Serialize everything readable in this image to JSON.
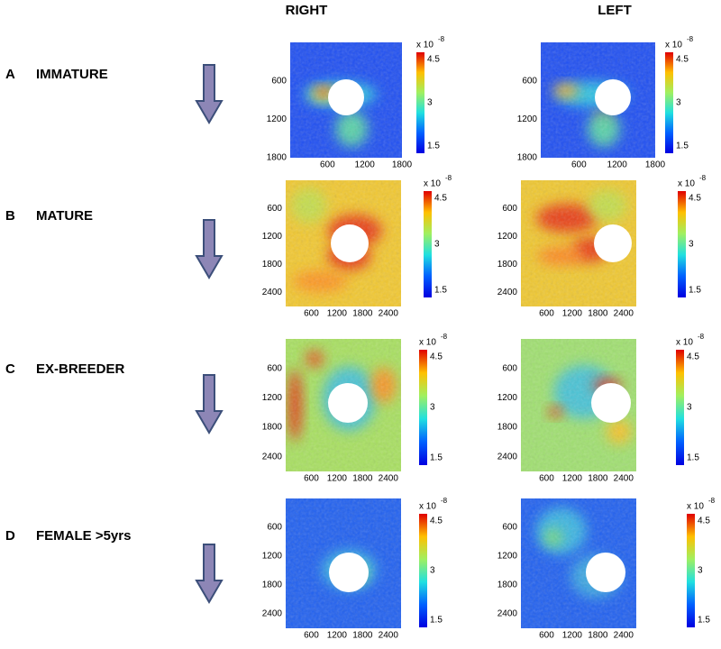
{
  "headers": [
    "RIGHT",
    "LEFT"
  ],
  "rows": [
    {
      "letter": "A",
      "label": "IMMATURE",
      "panels": [
        {
          "xticks": [
            600,
            1200,
            1800
          ],
          "yticks": [
            600,
            1200,
            1800
          ]
        },
        {
          "xticks": [
            600,
            1200,
            1800
          ],
          "yticks": [
            600,
            1200,
            1800
          ]
        }
      ]
    },
    {
      "letter": "B",
      "label": "MATURE",
      "panels": [
        {
          "xticks": [
            600,
            1200,
            1800,
            2400
          ],
          "yticks": [
            600,
            1200,
            1800,
            2400
          ]
        },
        {
          "xticks": [
            600,
            1200,
            1800,
            2400
          ],
          "yticks": [
            600,
            1200,
            1800,
            2400
          ]
        }
      ]
    },
    {
      "letter": "C",
      "label": "EX-BREEDER",
      "panels": [
        {
          "xticks": [
            600,
            1200,
            1800,
            2400
          ],
          "yticks": [
            600,
            1200,
            1800,
            2400
          ]
        },
        {
          "xticks": [
            600,
            1200,
            1800,
            2400
          ],
          "yticks": [
            600,
            1200,
            1800,
            2400
          ]
        }
      ]
    },
    {
      "letter": "D",
      "label": "FEMALE >5yrs",
      "panels": [
        {
          "xticks": [
            600,
            1200,
            1800,
            2400
          ],
          "yticks": [
            600,
            1200,
            1800,
            2400
          ]
        },
        {
          "xticks": [
            600,
            1200,
            1800,
            2400
          ],
          "yticks": [
            600,
            1200,
            1800,
            2400
          ]
        }
      ]
    }
  ],
  "colorbar": {
    "scale": "x 10",
    "exponent": "-8",
    "ticks": [
      4.5,
      3,
      1.5
    ]
  }
}
